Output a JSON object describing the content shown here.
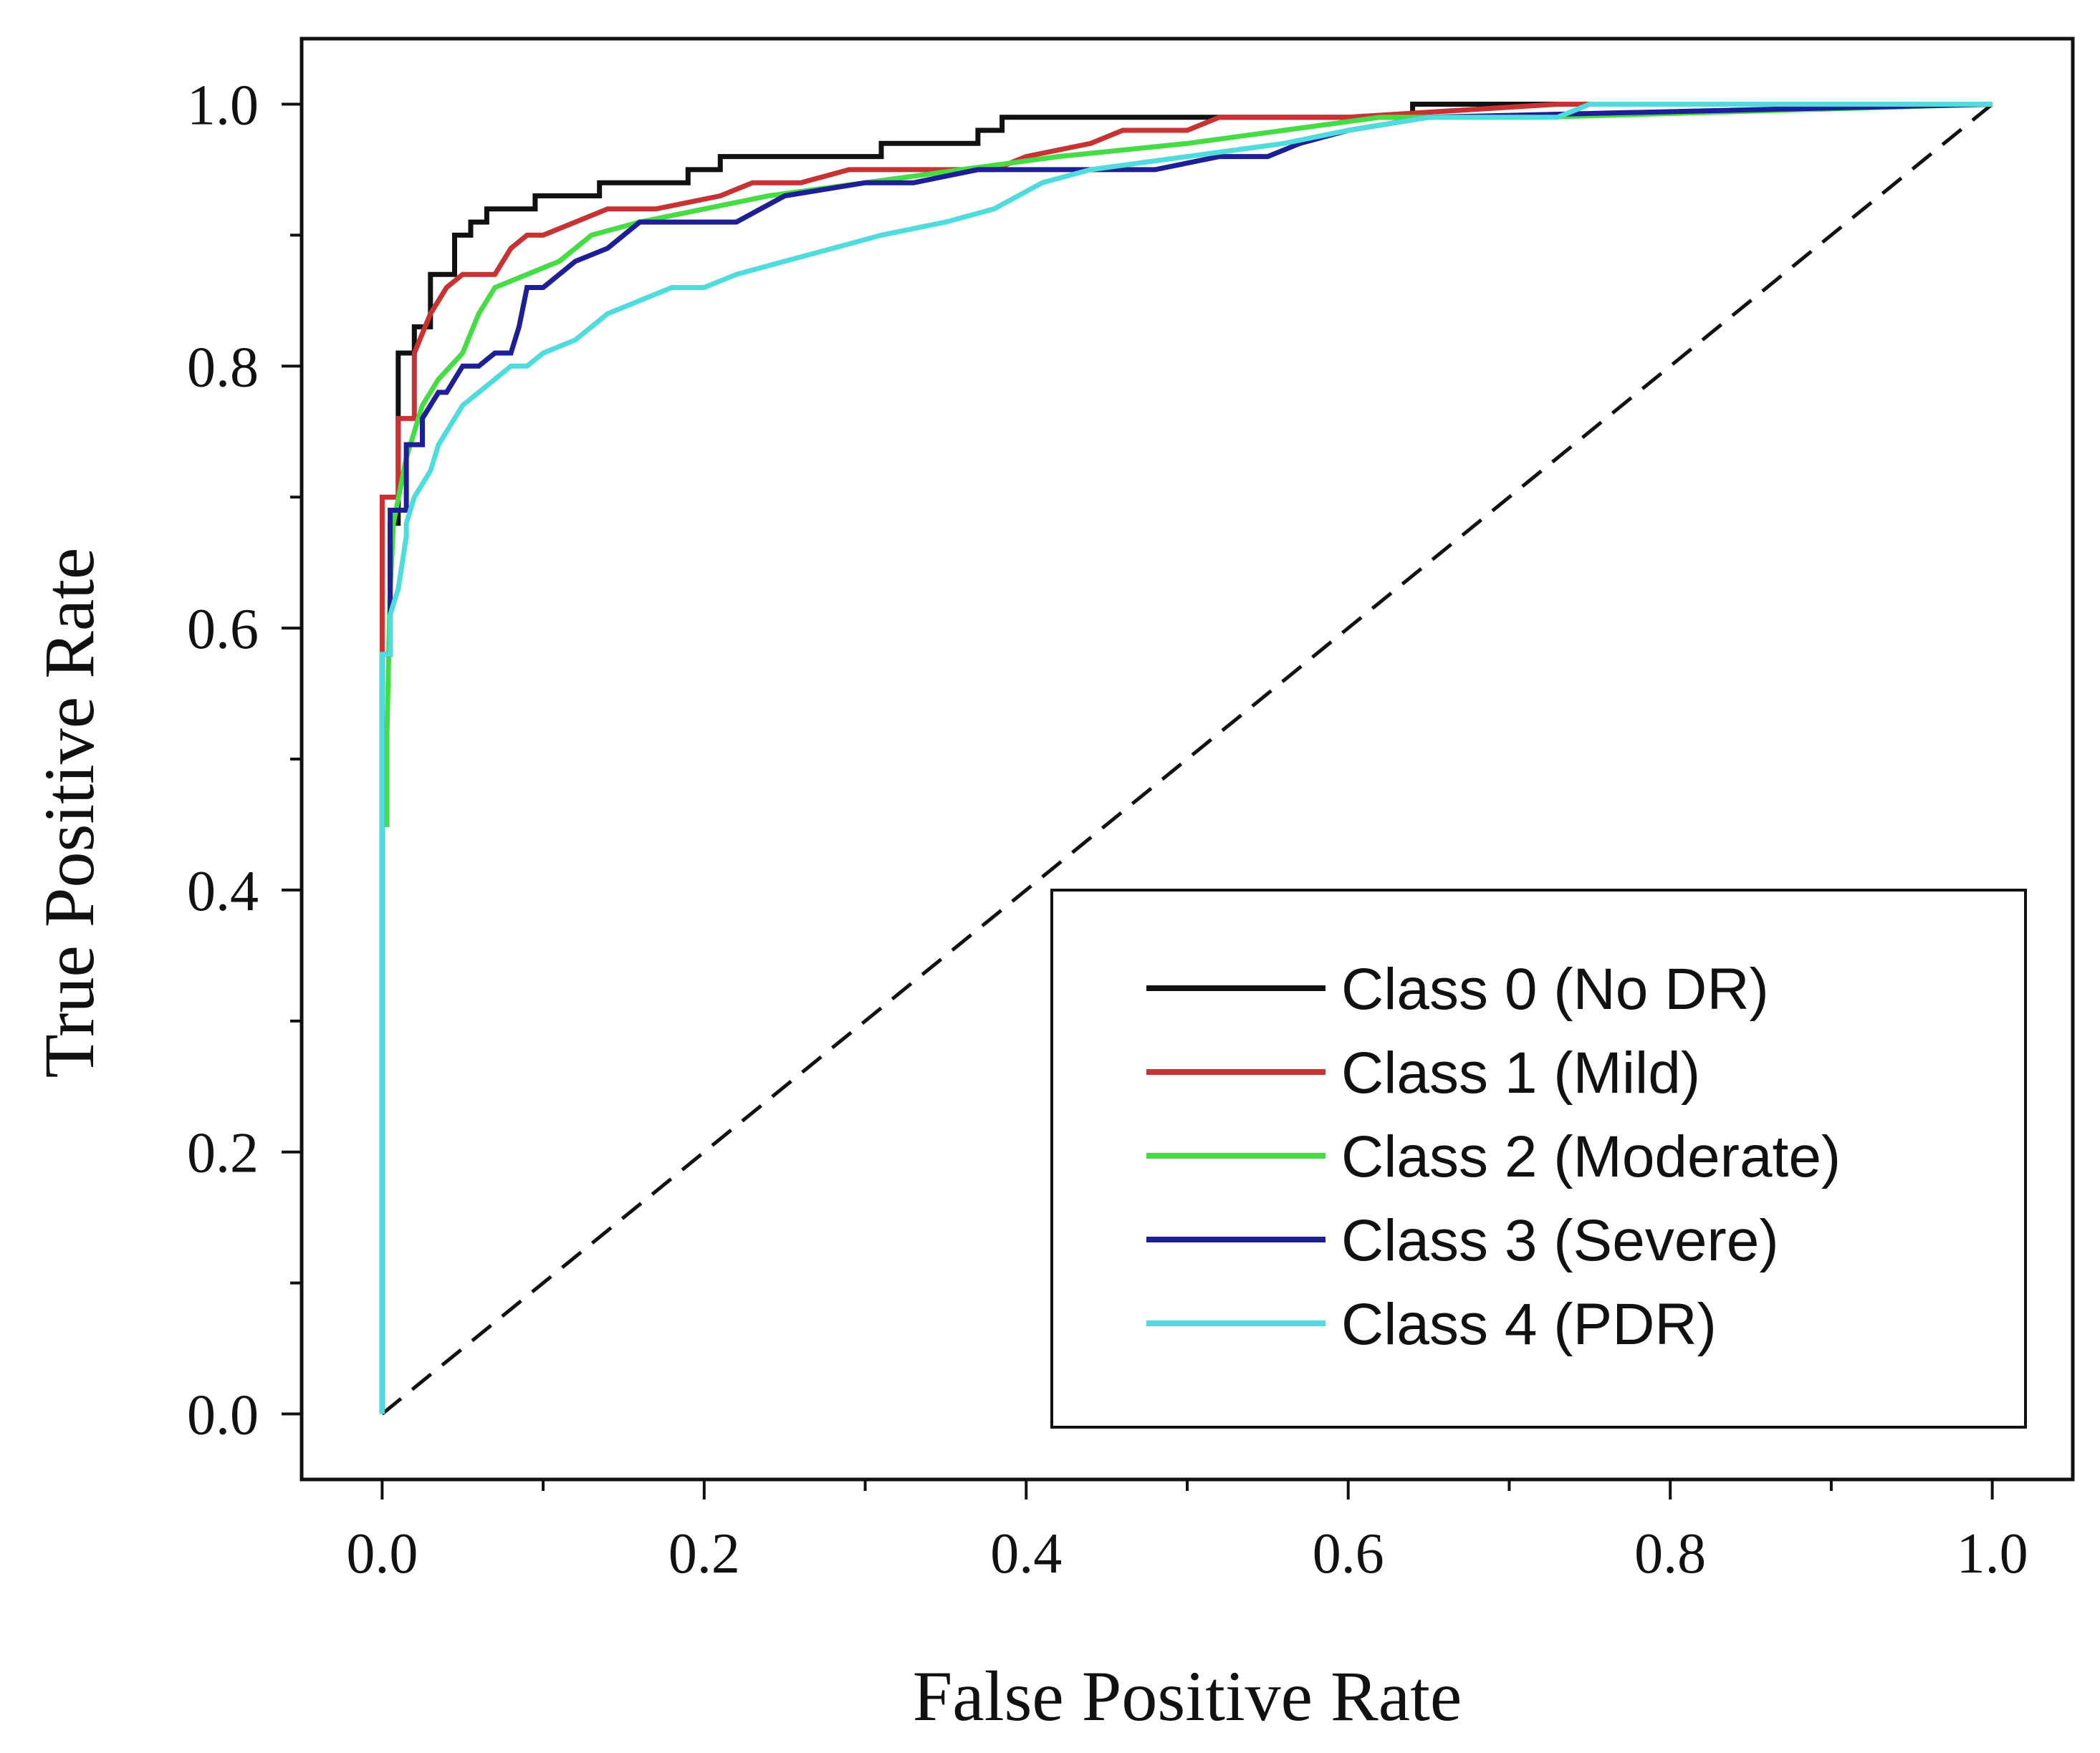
{
  "chart_data": {
    "type": "line",
    "title": "",
    "xlabel": "False Positive Rate",
    "ylabel": "True Positive Rate",
    "xlim": [
      -0.05,
      1.05
    ],
    "ylim": [
      -0.05,
      1.05
    ],
    "xticks": [
      0.0,
      0.2,
      0.4,
      0.6,
      0.8,
      1.0
    ],
    "yticks": [
      0.0,
      0.2,
      0.4,
      0.6,
      0.8,
      1.0
    ],
    "xtick_labels": [
      "0.0",
      "0.2",
      "0.4",
      "0.6",
      "0.8",
      "1.0"
    ],
    "ytick_labels": [
      "0.0",
      "0.2",
      "0.4",
      "0.6",
      "0.8",
      "1.0"
    ],
    "grid": false,
    "legend_position": "bottom-right",
    "reference_line": {
      "name": "chance",
      "style": "dashed",
      "color": "#111111",
      "x": [
        0,
        1
      ],
      "y": [
        0,
        1
      ]
    },
    "series": [
      {
        "name": "Class 0 (No DR)",
        "color": "#111111",
        "x": [
          0,
          0,
          0.005,
          0.005,
          0.01,
          0.01,
          0.02,
          0.02,
          0.03,
          0.03,
          0.045,
          0.045,
          0.055,
          0.055,
          0.065,
          0.065,
          0.075,
          0.075,
          0.095,
          0.095,
          0.11,
          0.11,
          0.135,
          0.135,
          0.19,
          0.19,
          0.21,
          0.21,
          0.31,
          0.31,
          0.37,
          0.37,
          0.385,
          0.385,
          0.64,
          0.64,
          1.0
        ],
        "y": [
          0,
          0.58,
          0.58,
          0.68,
          0.68,
          0.81,
          0.81,
          0.83,
          0.83,
          0.87,
          0.87,
          0.9,
          0.9,
          0.91,
          0.91,
          0.92,
          0.92,
          0.92,
          0.92,
          0.93,
          0.93,
          0.93,
          0.93,
          0.94,
          0.94,
          0.95,
          0.95,
          0.96,
          0.96,
          0.97,
          0.97,
          0.98,
          0.98,
          0.99,
          0.99,
          1.0,
          1.0
        ]
      },
      {
        "name": "Class 1 (Mild)",
        "color": "#c83232",
        "x": [
          0,
          0,
          0.01,
          0.01,
          0.02,
          0.02,
          0.03,
          0.04,
          0.05,
          0.07,
          0.08,
          0.09,
          0.1,
          0.12,
          0.14,
          0.17,
          0.21,
          0.23,
          0.26,
          0.29,
          0.34,
          0.38,
          0.4,
          0.44,
          0.46,
          0.5,
          0.52,
          0.6,
          0.73,
          1.0
        ],
        "y": [
          0,
          0.7,
          0.7,
          0.76,
          0.76,
          0.81,
          0.84,
          0.86,
          0.87,
          0.87,
          0.89,
          0.9,
          0.9,
          0.91,
          0.92,
          0.92,
          0.93,
          0.94,
          0.94,
          0.95,
          0.95,
          0.95,
          0.96,
          0.97,
          0.98,
          0.98,
          0.99,
          0.99,
          1.0,
          1.0
        ]
      },
      {
        "name": "Class 2 (Moderate)",
        "color": "#46dc46",
        "x": [
          0,
          0,
          0.003,
          0.003,
          0.005,
          0.007,
          0.015,
          0.025,
          0.035,
          0.05,
          0.06,
          0.07,
          0.09,
          0.11,
          0.13,
          0.16,
          0.2,
          0.24,
          0.3,
          0.36,
          0.42,
          0.5,
          0.56,
          0.62,
          0.72,
          1.0
        ],
        "y": [
          0,
          0.45,
          0.45,
          0.52,
          0.63,
          0.68,
          0.73,
          0.77,
          0.79,
          0.81,
          0.84,
          0.86,
          0.87,
          0.88,
          0.9,
          0.91,
          0.92,
          0.93,
          0.94,
          0.95,
          0.96,
          0.97,
          0.98,
          0.99,
          0.99,
          1.0
        ]
      },
      {
        "name": "Class 3 (Severe)",
        "color": "#1e1e96",
        "x": [
          0,
          0,
          0.005,
          0.005,
          0.015,
          0.015,
          0.025,
          0.025,
          0.035,
          0.04,
          0.045,
          0.05,
          0.06,
          0.07,
          0.08,
          0.085,
          0.09,
          0.1,
          0.11,
          0.12,
          0.14,
          0.16,
          0.18,
          0.22,
          0.25,
          0.3,
          0.33,
          0.37,
          0.42,
          0.48,
          0.52,
          0.55,
          0.57,
          0.6,
          0.65,
          1.0
        ],
        "y": [
          0,
          0.58,
          0.58,
          0.69,
          0.69,
          0.74,
          0.74,
          0.76,
          0.78,
          0.78,
          0.79,
          0.8,
          0.8,
          0.81,
          0.81,
          0.83,
          0.86,
          0.86,
          0.87,
          0.88,
          0.89,
          0.91,
          0.91,
          0.91,
          0.93,
          0.94,
          0.94,
          0.95,
          0.95,
          0.95,
          0.96,
          0.96,
          0.97,
          0.98,
          0.99,
          1.0
        ]
      },
      {
        "name": "Class 4 (PDR)",
        "color": "#50dcdc",
        "x": [
          0,
          0,
          0.005,
          0.005,
          0.01,
          0.015,
          0.015,
          0.02,
          0.025,
          0.03,
          0.035,
          0.04,
          0.05,
          0.06,
          0.07,
          0.08,
          0.09,
          0.1,
          0.12,
          0.14,
          0.16,
          0.18,
          0.2,
          0.22,
          0.25,
          0.28,
          0.31,
          0.35,
          0.38,
          0.41,
          0.44,
          0.5,
          0.56,
          0.6,
          0.65,
          0.73,
          0.75,
          1.0
        ],
        "y": [
          0,
          0.58,
          0.58,
          0.61,
          0.63,
          0.67,
          0.68,
          0.7,
          0.71,
          0.72,
          0.74,
          0.75,
          0.77,
          0.78,
          0.79,
          0.8,
          0.8,
          0.81,
          0.82,
          0.84,
          0.85,
          0.86,
          0.86,
          0.87,
          0.88,
          0.89,
          0.9,
          0.91,
          0.92,
          0.94,
          0.95,
          0.96,
          0.97,
          0.98,
          0.99,
          0.99,
          1.0,
          1.0
        ]
      }
    ]
  }
}
